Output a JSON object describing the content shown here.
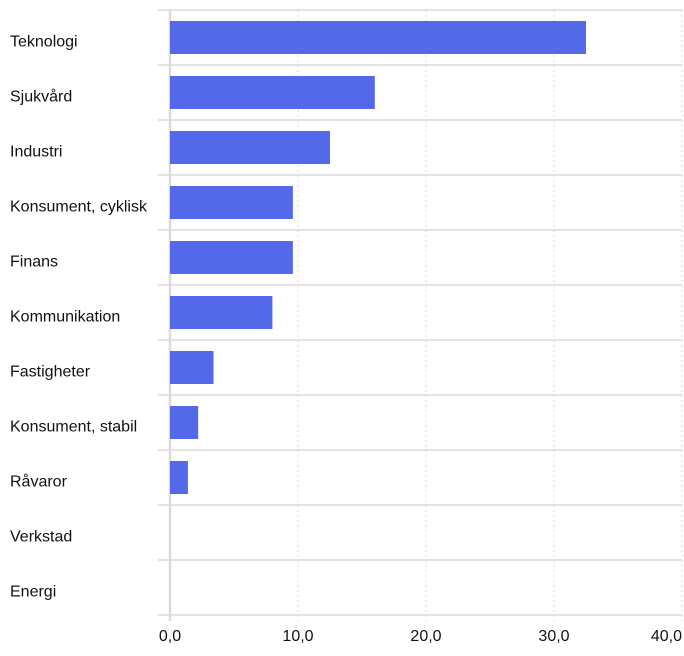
{
  "chart_data": {
    "type": "bar",
    "orientation": "horizontal",
    "categories": [
      "Teknologi",
      "Sjukvård",
      "Industri",
      "Konsument, cyklisk",
      "Finans",
      "Kommunikation",
      "Fastigheter",
      "Konsument, stabil",
      "Råvaror",
      "Verkstad",
      "Energi"
    ],
    "values": [
      32.5,
      16.0,
      12.5,
      9.6,
      9.6,
      8.0,
      3.4,
      2.2,
      1.4,
      0.0,
      0.0
    ],
    "xlim": [
      0,
      40
    ],
    "xticks": [
      "0,0",
      "10,0",
      "20,0",
      "30,0",
      "40,0"
    ],
    "xtick_values": [
      0,
      10,
      20,
      30,
      40
    ],
    "grid": true,
    "bar_color": "#5468EA",
    "grid_color": "#DADADA",
    "text_color": "#111111"
  }
}
